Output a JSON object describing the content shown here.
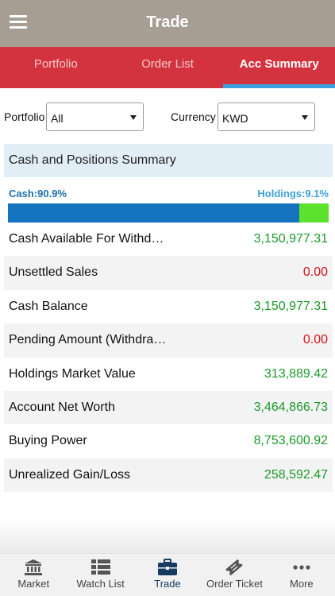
{
  "header": {
    "title": "Trade"
  },
  "tabs": [
    {
      "label": "Portfolio"
    },
    {
      "label": "Order List"
    },
    {
      "label": "Acc Summary"
    }
  ],
  "filters": {
    "portfolio_label": "Portfolio",
    "portfolio_value": "All",
    "currency_label": "Currency",
    "currency_value": "KWD"
  },
  "summary": {
    "title": "Cash and Positions Summary",
    "cash_label": "Cash:90.9%",
    "holdings_label": "Holdings:9.1%",
    "cash_fraction": 0.909,
    "rows": [
      {
        "label": "Cash Available For Withd…",
        "value": "3,150,977.31",
        "tone": "positive"
      },
      {
        "label": "Unsettled Sales",
        "value": "0.00",
        "tone": "negative"
      },
      {
        "label": "Cash Balance",
        "value": "3,150,977.31",
        "tone": "positive"
      },
      {
        "label": "Pending Amount (Withdra…",
        "value": "0.00",
        "tone": "negative"
      },
      {
        "label": "Holdings Market Value",
        "value": "313,889.42",
        "tone": "positive"
      },
      {
        "label": "Account Net Worth",
        "value": "3,464,866.73",
        "tone": "positive"
      },
      {
        "label": "Buying Power",
        "value": "8,753,600.92",
        "tone": "positive"
      },
      {
        "label": "Unrealized Gain/Loss",
        "value": "258,592.47",
        "tone": "positive"
      }
    ]
  },
  "bottom_nav": [
    {
      "label": "Market",
      "icon": "bank-icon"
    },
    {
      "label": "Watch List",
      "icon": "list-icon"
    },
    {
      "label": "Trade",
      "icon": "briefcase-icon"
    },
    {
      "label": "Order Ticket",
      "icon": "ticket-icon"
    },
    {
      "label": "More",
      "icon": "more-dots-icon"
    }
  ],
  "colors": {
    "header": "#a69d93",
    "tab_bar": "#d3333f",
    "tab_indicator": "#3aa0e0",
    "cash_bar": "#1574bf",
    "holdings_bar": "#5de22e",
    "positive": "#1a9a2a",
    "negative": "#d8111b"
  }
}
